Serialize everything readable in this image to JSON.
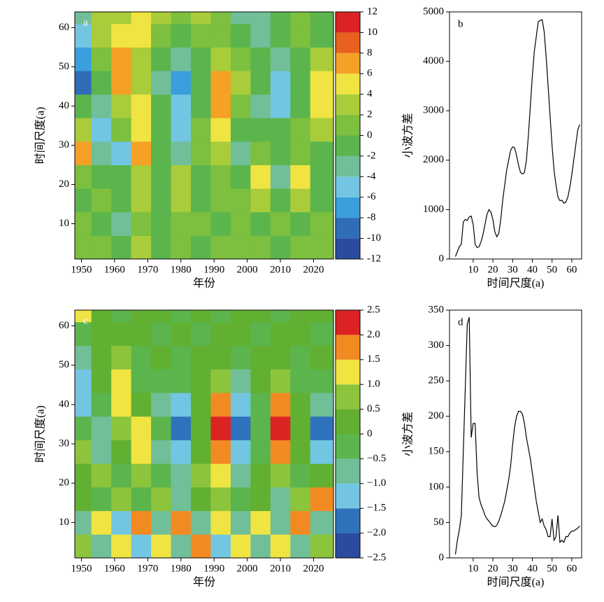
{
  "chart_data": [
    {
      "type": "contour",
      "label": "a",
      "xlabel": "年份",
      "ylabel": "时间尺度(a)",
      "x": [
        1950,
        1956,
        1962,
        1968,
        1974,
        1980,
        1986,
        1992,
        1998,
        2004,
        2010,
        2016,
        2022
      ],
      "y": [
        4,
        10,
        16,
        22,
        28,
        34,
        40,
        46,
        52,
        58,
        64
      ],
      "z": [
        [
          0,
          1,
          -1,
          2,
          -2,
          1,
          -1,
          1,
          0,
          1,
          -1,
          1,
          0
        ],
        [
          1,
          -1,
          -3,
          1,
          -1,
          1,
          0,
          -1,
          1,
          -1,
          1,
          -1,
          1
        ],
        [
          -1,
          1,
          -2,
          2,
          -1,
          2,
          -1,
          1,
          1,
          2,
          -2,
          2,
          -1
        ],
        [
          1,
          -2,
          -1,
          3,
          -1,
          3,
          -2,
          1,
          -2,
          4,
          -4,
          4,
          -2
        ],
        [
          6,
          -4,
          -5,
          6,
          -2,
          -4,
          0,
          3,
          -3,
          1,
          -2,
          1,
          -1
        ],
        [
          3,
          -6,
          1,
          5,
          -1,
          -5,
          1,
          5,
          -1,
          -2,
          -2,
          1,
          2
        ],
        [
          -2,
          -3,
          3,
          5,
          -2,
          -6,
          -1,
          6,
          1,
          -3,
          -5,
          -1,
          4
        ],
        [
          -10,
          -1,
          7,
          3,
          -4,
          -7,
          -2,
          6,
          2,
          -2,
          -6,
          -2,
          5
        ],
        [
          -7,
          1,
          6,
          2,
          -2,
          -4,
          -1,
          3,
          1,
          -1,
          -3,
          -1,
          2
        ],
        [
          -5,
          2,
          4,
          5,
          1,
          -2,
          1,
          1,
          -2,
          -3,
          -1,
          1,
          -1
        ],
        [
          -4,
          2,
          2,
          5,
          3,
          1,
          2,
          1,
          -3,
          -4,
          -2,
          1,
          -2
        ]
      ],
      "xlim": [
        1948,
        2026
      ],
      "ylim": [
        1,
        64
      ],
      "xticks": [
        1950,
        1960,
        1970,
        1980,
        1990,
        2000,
        2010,
        2020
      ],
      "yticks": [
        10,
        20,
        30,
        40,
        50,
        60
      ],
      "levels": [
        -12,
        -10,
        -8,
        -6,
        -4,
        -2,
        0,
        2,
        4,
        6,
        8,
        10,
        12
      ],
      "colors": [
        "#2b4c9e",
        "#2f6db8",
        "#3a9fdc",
        "#72c6e2",
        "#70bf98",
        "#5bb54c",
        "#7dbf3e",
        "#a9cc3a",
        "#f0e442",
        "#f4a125",
        "#e8611e",
        "#dc2323"
      ]
    },
    {
      "type": "line",
      "label": "b",
      "xlabel": "时间尺度(a)",
      "ylabel": "小波方差",
      "x": [
        1,
        2,
        3,
        4,
        5,
        6,
        7,
        8,
        9,
        10,
        11,
        12,
        13,
        14,
        15,
        16,
        17,
        18,
        19,
        20,
        21,
        22,
        23,
        24,
        25,
        26,
        27,
        28,
        29,
        30,
        31,
        32,
        33,
        34,
        35,
        36,
        37,
        38,
        39,
        40,
        41,
        42,
        43,
        44,
        45,
        46,
        47,
        48,
        49,
        50,
        51,
        52,
        53,
        54,
        55,
        56,
        57,
        58,
        59,
        60,
        61,
        62,
        63,
        64
      ],
      "values": [
        50,
        150,
        250,
        300,
        750,
        800,
        780,
        850,
        870,
        700,
        300,
        230,
        250,
        350,
        500,
        700,
        900,
        1000,
        950,
        800,
        550,
        450,
        520,
        800,
        1200,
        1500,
        1800,
        2000,
        2200,
        2270,
        2250,
        2100,
        1900,
        1750,
        1720,
        1750,
        2000,
        2500,
        3100,
        3700,
        4200,
        4500,
        4800,
        4830,
        4840,
        4600,
        4100,
        3500,
        2900,
        2300,
        1800,
        1500,
        1250,
        1180,
        1190,
        1130,
        1150,
        1250,
        1450,
        1700,
        2000,
        2300,
        2600,
        2720
      ],
      "color": "#000000",
      "xlim": [
        -2,
        65
      ],
      "ylim": [
        0,
        5000
      ],
      "xticks": [
        10,
        20,
        30,
        40,
        50,
        60
      ],
      "yticks": [
        0,
        1000,
        2000,
        3000,
        4000,
        5000
      ]
    },
    {
      "type": "contour",
      "label": "c",
      "xlabel": "年份",
      "ylabel": "时间尺度(a)",
      "x": [
        1950,
        1956,
        1962,
        1968,
        1974,
        1980,
        1986,
        1992,
        1998,
        2004,
        2010,
        2016,
        2022
      ],
      "y": [
        4,
        10,
        16,
        22,
        28,
        34,
        40,
        46,
        52,
        58,
        64
      ],
      "z": [
        [
          0.5,
          -1,
          1,
          -1.5,
          1,
          -1,
          1.5,
          -1.5,
          1,
          -1,
          1,
          -1,
          0.5
        ],
        [
          -1,
          1,
          -1.5,
          1.5,
          -1,
          1.5,
          -1,
          1,
          -1,
          1,
          -1,
          1.5,
          -1
        ],
        [
          0.3,
          -0.5,
          0.8,
          -0.3,
          0.5,
          -0.8,
          0.3,
          0.8,
          -0.5,
          0.3,
          -0.8,
          0.8,
          1.6
        ],
        [
          0.3,
          0.8,
          -0.3,
          0.5,
          -0.5,
          -0.8,
          0.5,
          1.2,
          -0.8,
          0.3,
          0.8,
          -0.5,
          0.3
        ],
        [
          0.8,
          -0.8,
          0.3,
          1.2,
          -0.8,
          -1.2,
          0.3,
          1.8,
          -1.2,
          -0.3,
          1.5,
          0.3,
          -1.2
        ],
        [
          -0.5,
          -1,
          0.8,
          1.2,
          -0.5,
          -1.7,
          0.3,
          2.2,
          -1.8,
          -0.3,
          2.1,
          0.3,
          -1.6
        ],
        [
          -1.2,
          -0.5,
          1.2,
          0.3,
          -0.8,
          -1.2,
          0.3,
          1.6,
          -1.5,
          -0.3,
          1.5,
          0.3,
          -1
        ],
        [
          -1.2,
          0.3,
          1,
          -0.3,
          -0.5,
          -0.5,
          0.3,
          0.8,
          -0.8,
          0.3,
          0.5,
          -0.3,
          -0.5
        ],
        [
          -0.8,
          0.3,
          0.5,
          -0.3,
          0.3,
          -0.3,
          0.3,
          0.3,
          -0.3,
          0.3,
          0.3,
          -0.3,
          0.3
        ],
        [
          -0.5,
          0.3,
          0.3,
          0.3,
          -0.3,
          0.3,
          -0.3,
          0.3,
          0.3,
          -0.3,
          0.3,
          0.3,
          -0.3
        ],
        [
          1.2,
          0.3,
          -0.3,
          0.3,
          0.3,
          -0.3,
          0.3,
          -0.3,
          0.3,
          0.3,
          -0.3,
          0.3,
          0.3
        ]
      ],
      "xlim": [
        1948,
        2026
      ],
      "ylim": [
        1,
        64
      ],
      "xticks": [
        1950,
        1960,
        1970,
        1980,
        1990,
        2000,
        2010,
        2020
      ],
      "yticks": [
        10,
        20,
        30,
        40,
        50,
        60
      ],
      "levels": [
        {
          "value": -2.5,
          "label": "−2.5"
        },
        {
          "value": -2,
          "label": "−2.0"
        },
        {
          "value": -1.5,
          "label": "−1.5"
        },
        {
          "value": -1,
          "label": "−1.0"
        },
        {
          "value": -0.5,
          "label": "−0.5"
        },
        0,
        0.5,
        {
          "value": 1,
          "label": "1.0"
        },
        1.5,
        {
          "value": 2,
          "label": "2.0"
        },
        2.5
      ],
      "colors": [
        "#2b4c9e",
        "#2f72bc",
        "#72c6e2",
        "#70bf98",
        "#5bb54c",
        "#62b032",
        "#8cc43c",
        "#f0e442",
        "#f28a22",
        "#dc2323"
      ]
    },
    {
      "type": "line",
      "label": "d",
      "xlabel": "时间尺度(a)",
      "ylabel": "小波方差",
      "x": [
        1,
        2,
        3,
        4,
        5,
        6,
        7,
        8,
        9,
        10,
        11,
        12,
        13,
        14,
        15,
        16,
        17,
        18,
        19,
        20,
        21,
        22,
        23,
        24,
        25,
        26,
        27,
        28,
        29,
        30,
        31,
        32,
        33,
        34,
        35,
        36,
        37,
        38,
        39,
        40,
        41,
        42,
        43,
        44,
        45,
        46,
        47,
        48,
        49,
        50,
        51,
        52,
        53,
        54,
        55,
        56,
        57,
        58,
        59,
        60,
        61,
        62,
        63,
        64
      ],
      "values": [
        5,
        25,
        40,
        60,
        150,
        240,
        330,
        340,
        170,
        190,
        190,
        120,
        85,
        75,
        68,
        60,
        55,
        52,
        48,
        45,
        44,
        46,
        52,
        60,
        70,
        80,
        95,
        110,
        130,
        160,
        185,
        200,
        207,
        207,
        203,
        190,
        170,
        155,
        140,
        120,
        100,
        80,
        65,
        50,
        55,
        45,
        40,
        30,
        30,
        55,
        25,
        30,
        60,
        22,
        25,
        22,
        30,
        30,
        35,
        38,
        38,
        40,
        42,
        45
      ],
      "color": "#000000",
      "xlim": [
        -2,
        65
      ],
      "ylim": [
        0,
        350
      ],
      "xticks": [
        10,
        20,
        30,
        40,
        50,
        60
      ],
      "yticks": [
        0,
        50,
        100,
        150,
        200,
        250,
        300,
        350
      ]
    }
  ]
}
